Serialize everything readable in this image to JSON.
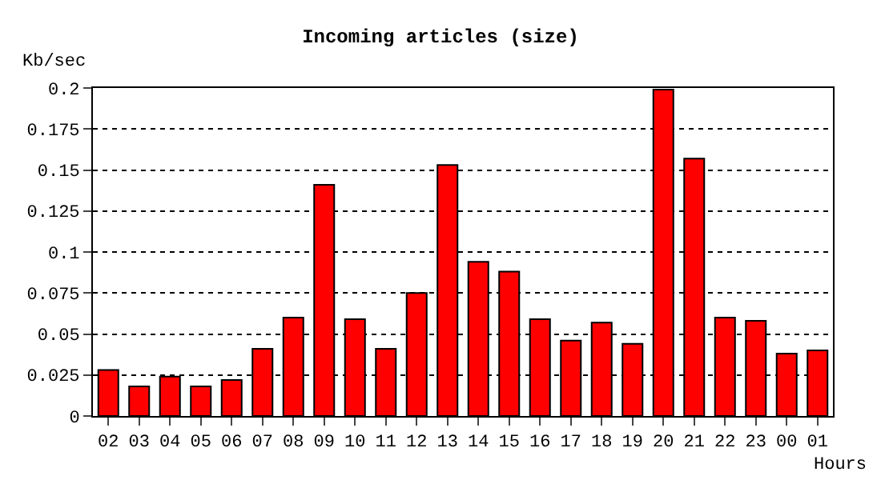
{
  "chart_data": {
    "type": "bar",
    "title": "Incoming articles (size)",
    "xlabel": "Hours",
    "ylabel": "Kb/sec",
    "categories": [
      "02",
      "03",
      "04",
      "05",
      "06",
      "07",
      "08",
      "09",
      "10",
      "11",
      "12",
      "13",
      "14",
      "15",
      "16",
      "17",
      "18",
      "19",
      "20",
      "21",
      "22",
      "23",
      "00",
      "01"
    ],
    "series": [
      {
        "color": "#ff0000",
        "values": [
          0.028,
          0.018,
          0.024,
          0.018,
          0.022,
          0.041,
          0.06,
          0.141,
          0.059,
          0.041,
          0.075,
          0.153,
          0.094,
          0.088,
          0.059,
          0.046,
          0.057,
          0.044,
          0.199,
          0.157,
          0.06,
          0.058,
          0.038,
          0.04
        ]
      }
    ],
    "ylim": [
      0,
      0.2
    ],
    "yticks": [
      0,
      0.025,
      0.05,
      0.075,
      0.1,
      0.125,
      0.15,
      0.175,
      0.2
    ],
    "grid": "y"
  }
}
